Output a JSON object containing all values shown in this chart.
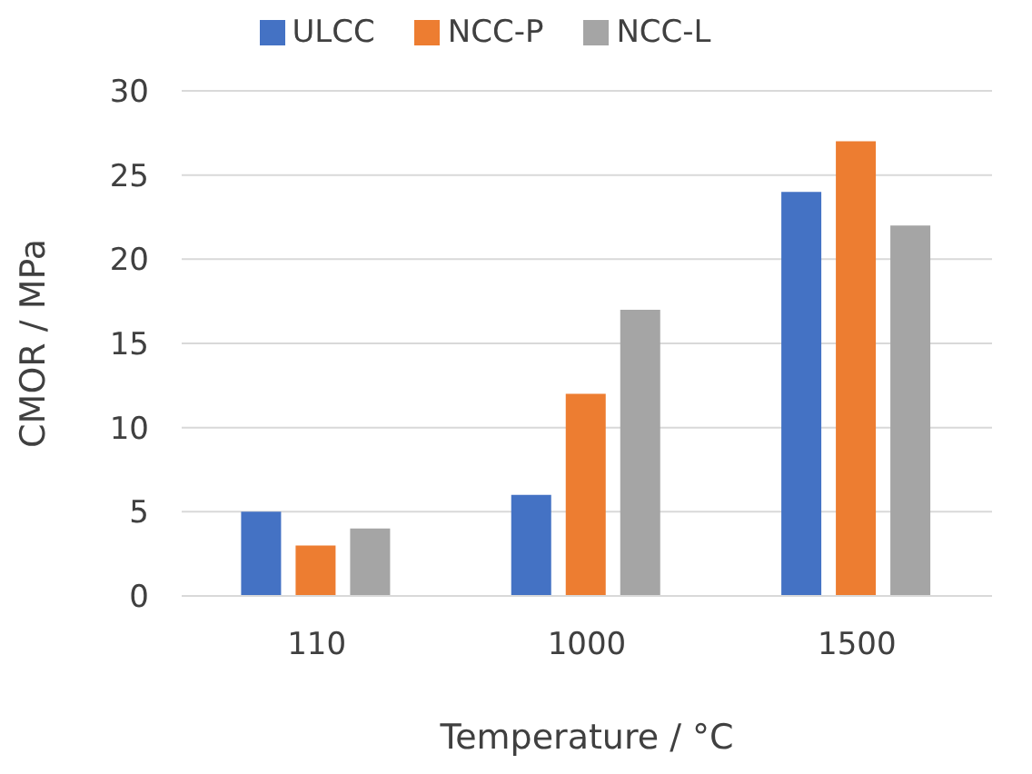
{
  "chart_data": {
    "type": "bar",
    "xlabel": "Temperature / °C",
    "ylabel": "CMOR / MPa",
    "categories": [
      "110",
      "1000",
      "1500"
    ],
    "series": [
      {
        "name": "ULCC",
        "color": "#4472c4",
        "values": [
          5,
          6,
          24
        ]
      },
      {
        "name": "NCC-P",
        "color": "#ed7d31",
        "values": [
          3,
          12,
          27
        ]
      },
      {
        "name": "NCC-L",
        "color": "#a5a5a5",
        "values": [
          4,
          17,
          22
        ]
      }
    ],
    "ylim": [
      0,
      30
    ],
    "yticks": [
      0,
      5,
      10,
      15,
      20,
      25,
      30
    ],
    "grid": "y",
    "legend": "top"
  }
}
